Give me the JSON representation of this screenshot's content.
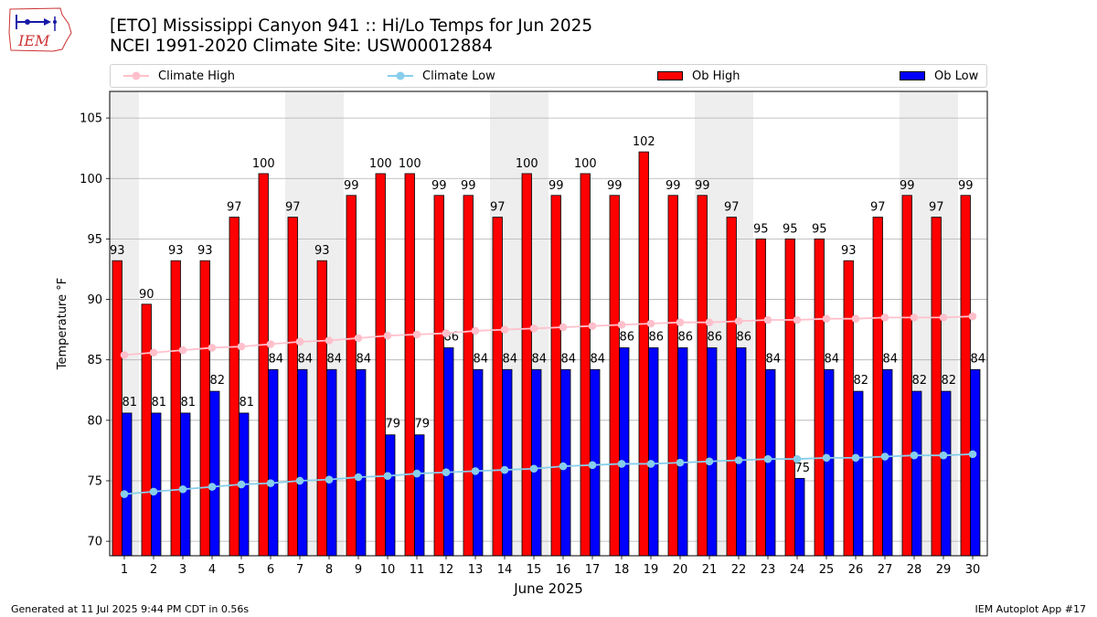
{
  "header": {
    "title_line1": "[ETO] Mississippi Canyon 941 :: Hi/Lo Temps for Jun 2025",
    "title_line2": "NCEI 1991-2020 Climate Site: USW00012884",
    "logo_text": "IEM"
  },
  "legend": {
    "climate_high": "Climate High",
    "climate_low": "Climate Low",
    "ob_high": "Ob High",
    "ob_low": "Ob Low"
  },
  "footer": {
    "generated": "Generated at 11 Jul 2025 9:44 PM CDT in 0.56s",
    "app": "IEM Autoplot App #17"
  },
  "colors": {
    "ob_high": "#ff0000",
    "ob_low": "#0000ff",
    "climate_high": "#ffc0cb",
    "climate_low": "#87ceeb",
    "weekend_band": "#eeeeee",
    "grid": "#b0b0b0"
  },
  "chart_data": {
    "type": "bar",
    "xlabel": "June 2025",
    "ylabel": "Temperature °F",
    "ylim": [
      68.8,
      107.2
    ],
    "yticks": [
      70,
      75,
      80,
      85,
      90,
      95,
      100,
      105
    ],
    "grid": "horizontal",
    "legend_position": "top",
    "categories": [
      "1",
      "2",
      "3",
      "4",
      "5",
      "6",
      "7",
      "8",
      "9",
      "10",
      "11",
      "12",
      "13",
      "14",
      "15",
      "16",
      "17",
      "18",
      "19",
      "20",
      "21",
      "22",
      "23",
      "24",
      "25",
      "26",
      "27",
      "28",
      "29",
      "30"
    ],
    "weekend_days": [
      1,
      7,
      8,
      14,
      15,
      21,
      22,
      28,
      29
    ],
    "series": [
      {
        "name": "Ob High",
        "kind": "bar",
        "values": [
          93,
          90,
          93,
          93,
          97,
          100,
          97,
          93,
          99,
          100,
          100,
          99,
          99,
          97,
          100,
          99,
          100,
          99,
          102,
          99,
          99,
          97,
          95,
          95,
          95,
          93,
          97,
          99,
          97,
          99
        ],
        "plotted_values": [
          93.2,
          89.6,
          93.2,
          93.2,
          96.8,
          100.4,
          96.8,
          93.2,
          98.6,
          100.4,
          100.4,
          98.6,
          98.6,
          96.8,
          100.4,
          98.6,
          100.4,
          98.6,
          102.2,
          98.6,
          98.6,
          96.8,
          95.0,
          95.0,
          95.0,
          93.2,
          96.8,
          98.6,
          96.8,
          98.6
        ]
      },
      {
        "name": "Ob Low",
        "kind": "bar",
        "values": [
          81,
          81,
          81,
          82,
          81,
          84,
          84,
          84,
          84,
          79,
          79,
          86,
          84,
          84,
          84,
          84,
          84,
          86,
          86,
          86,
          86,
          86,
          84,
          75,
          84,
          82,
          84,
          82,
          82,
          84
        ],
        "plotted_values": [
          80.6,
          80.6,
          80.6,
          82.4,
          80.6,
          84.2,
          84.2,
          84.2,
          84.2,
          78.8,
          78.8,
          86.0,
          84.2,
          84.2,
          84.2,
          84.2,
          84.2,
          86.0,
          86.0,
          86.0,
          86.0,
          86.0,
          84.2,
          75.2,
          84.2,
          82.4,
          84.2,
          82.4,
          82.4,
          84.2
        ]
      },
      {
        "name": "Climate High",
        "kind": "line",
        "values": [
          85.4,
          85.6,
          85.8,
          86.0,
          86.1,
          86.3,
          86.5,
          86.6,
          86.8,
          87.0,
          87.1,
          87.2,
          87.4,
          87.5,
          87.6,
          87.7,
          87.8,
          87.9,
          88.0,
          88.1,
          88.1,
          88.2,
          88.3,
          88.3,
          88.4,
          88.4,
          88.5,
          88.5,
          88.5,
          88.6
        ]
      },
      {
        "name": "Climate Low",
        "kind": "line",
        "values": [
          73.9,
          74.1,
          74.3,
          74.5,
          74.7,
          74.8,
          75.0,
          75.1,
          75.3,
          75.4,
          75.6,
          75.7,
          75.8,
          75.9,
          76.0,
          76.2,
          76.3,
          76.4,
          76.4,
          76.5,
          76.6,
          76.7,
          76.8,
          76.8,
          76.9,
          76.9,
          77.0,
          77.1,
          77.1,
          77.2
        ]
      }
    ]
  }
}
